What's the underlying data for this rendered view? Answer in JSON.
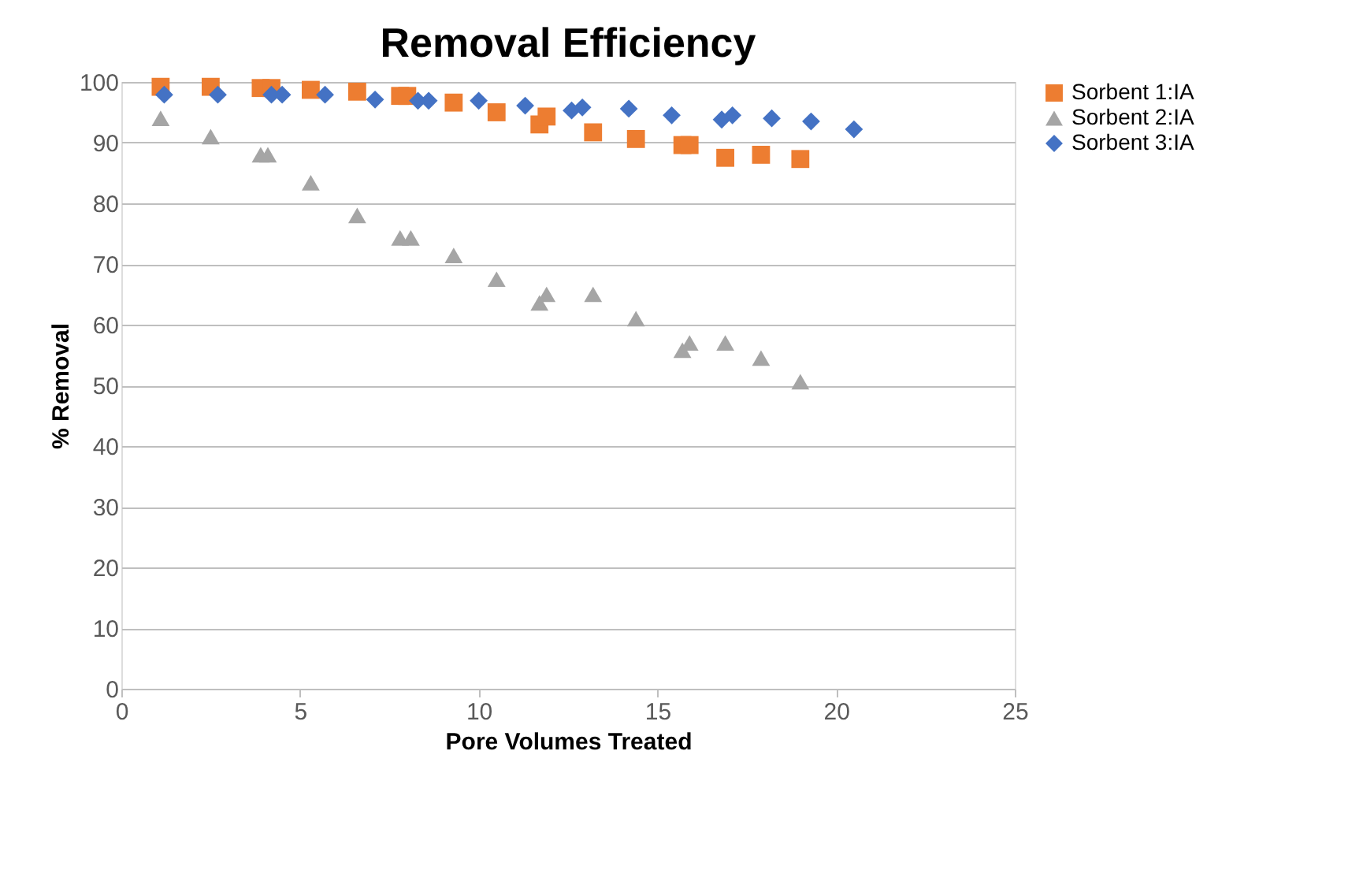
{
  "chart_data": {
    "type": "scatter",
    "title": "Removal Efficiency",
    "xlabel": "Pore Volumes Treated",
    "ylabel": "% Removal",
    "xlim": [
      0,
      25
    ],
    "xticks": [
      0,
      5,
      10,
      15,
      20,
      25
    ],
    "ylim": [
      0,
      100
    ],
    "yticks": [
      0,
      10,
      20,
      30,
      40,
      50,
      60,
      70,
      80,
      90,
      100
    ],
    "grid": "y",
    "legend": "right",
    "series": [
      {
        "name": "Sorbent 1:IA",
        "color": "#ed7d31",
        "marker": "square",
        "x": [
          1.1,
          2.5,
          3.9,
          4.2,
          5.3,
          6.6,
          7.8,
          8.0,
          9.3,
          10.5,
          11.7,
          11.9,
          13.2,
          14.4,
          15.7,
          15.9,
          16.9,
          17.9,
          19.0
        ],
        "values": [
          99.2,
          99.2,
          99,
          99,
          98.7,
          98.4,
          97.7,
          97.7,
          96.6,
          95,
          93,
          94.3,
          91.7,
          90.6,
          89.6,
          89.6,
          87.5,
          88,
          87.3
        ]
      },
      {
        "name": "Sorbent 2:IA",
        "color": "#a5a5a5",
        "marker": "triangle",
        "x": [
          1.1,
          2.5,
          3.9,
          4.1,
          5.3,
          6.6,
          7.8,
          8.1,
          9.3,
          10.5,
          11.7,
          11.9,
          13.2,
          14.4,
          15.7,
          15.9,
          16.9,
          17.9,
          19.0
        ],
        "values": [
          94,
          91,
          88,
          88,
          83.4,
          78,
          74.3,
          74.3,
          71.4,
          67.5,
          63.6,
          65,
          65,
          61,
          55.8,
          57,
          57,
          54.5,
          50.6
        ]
      },
      {
        "name": "Sorbent 3:IA",
        "color": "#4472c4",
        "marker": "diamond",
        "x": [
          1.2,
          2.7,
          4.2,
          4.5,
          5.7,
          7.1,
          8.3,
          8.6,
          10.0,
          11.3,
          12.6,
          12.9,
          14.2,
          15.4,
          16.8,
          17.1,
          18.2,
          19.3,
          20.5
        ],
        "values": [
          97.9,
          97.9,
          97.9,
          97.9,
          97.9,
          97.1,
          96.9,
          96.9,
          96.9,
          96.1,
          95.3,
          95.8,
          95.6,
          94.5,
          93.8,
          94.5,
          94,
          93.5,
          92.2
        ]
      }
    ]
  }
}
